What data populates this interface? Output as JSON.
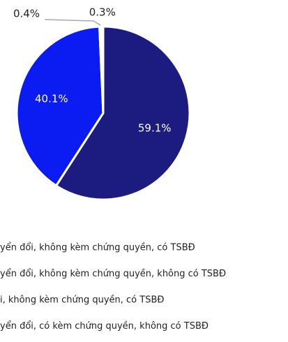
{
  "chart_data": {
    "type": "pie",
    "categories": [
      "yển đổi, không kèm chứng quyền, có TSBĐ",
      "yển đổi, không kèm chứng quyền, không có TSBĐ",
      "i, không kèm chứng quyền, có TSBĐ",
      "yển đổi, có kèm chứng quyền, không có TSBĐ"
    ],
    "values": [
      59.1,
      40.1,
      0.4,
      0.3
    ],
    "value_labels": [
      "59.1%",
      "40.1%",
      "0.4%",
      "0.3%"
    ],
    "colors": [
      "#1c1c80",
      "#0b1cf2",
      "#bdbdbd",
      "#e6e6e6"
    ]
  }
}
